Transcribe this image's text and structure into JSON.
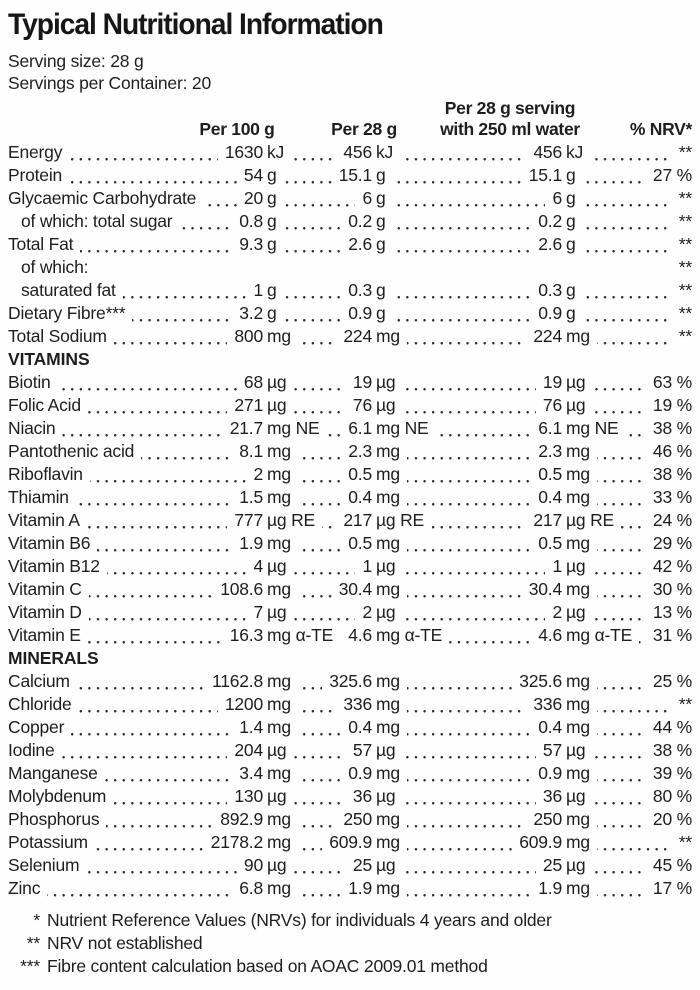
{
  "title": "Typical Nutritional Information",
  "serving": {
    "size": "Serving size: 28 g",
    "per_container": "Servings per Container: 20"
  },
  "columns": {
    "per100": "Per 100 g",
    "per28": "Per 28 g",
    "water_line1": "Per 28 g serving",
    "water_line2": "with 250 ml water",
    "nrv": "% NRV*"
  },
  "rows": [
    {
      "label": "Energy",
      "n1": "1630",
      "u1": "kJ",
      "n2": "456",
      "u2": "kJ",
      "n3": "456",
      "u3": "kJ",
      "nrv": "**"
    },
    {
      "label": "Protein",
      "n1": "54",
      "u1": "g",
      "n2": "15.1",
      "u2": "g",
      "n3": "15.1",
      "u3": "g",
      "nrv": "27 %"
    },
    {
      "label": "Glycaemic Carbohydrate",
      "n1": "20",
      "u1": "g",
      "n2": "6",
      "u2": "g",
      "n3": "6",
      "u3": "g",
      "nrv": "**"
    },
    {
      "label": "of which: total sugar",
      "ind": 1,
      "n1": "0.8",
      "u1": "g",
      "n2": "0.2",
      "u2": "g",
      "n3": "0.2",
      "u3": "g",
      "nrv": "**"
    },
    {
      "label": "Total Fat",
      "n1": "9.3",
      "u1": "g",
      "n2": "2.6",
      "u2": "g",
      "n3": "2.6",
      "u3": "g",
      "nrv": "**"
    },
    {
      "label": "of which:",
      "ind": 1,
      "nd": 1,
      "nrv": "**"
    },
    {
      "label": "saturated fat",
      "ind": 1,
      "n1": "1",
      "u1": "g",
      "n2": "0.3",
      "u2": "g",
      "n3": "0.3",
      "u3": "g",
      "nrv": "**"
    },
    {
      "label": "Dietary Fibre***",
      "n1": "3.2",
      "u1": "g",
      "n2": "0.9",
      "u2": "g",
      "n3": "0.9",
      "u3": "g",
      "nrv": "**"
    },
    {
      "label": "Total Sodium",
      "n1": "800",
      "u1": "mg",
      "n2": "224",
      "u2": "mg",
      "n3": "224",
      "u3": "mg",
      "nrv": "**"
    },
    {
      "label": "VITAMINS",
      "sec": 1
    },
    {
      "label": "Biotin",
      "n1": "68",
      "u1": "µg",
      "n2": "19",
      "u2": "µg",
      "n3": "19",
      "u3": "µg",
      "nrv": "63 %"
    },
    {
      "label": "Folic Acid",
      "n1": "271",
      "u1": "µg",
      "n2": "76",
      "u2": "µg",
      "n3": "76",
      "u3": "µg",
      "nrv": "19 %"
    },
    {
      "label": "Niacin",
      "n1": "21.7",
      "u1": "mg NE",
      "n2": "6.1",
      "u2": "mg NE",
      "n3": "6.1",
      "u3": "mg NE",
      "nrv": "38 %"
    },
    {
      "label": "Pantothenic acid",
      "n1": "8.1",
      "u1": "mg",
      "n2": "2.3",
      "u2": "mg",
      "n3": "2.3",
      "u3": "mg",
      "nrv": "46 %"
    },
    {
      "label": "Riboflavin",
      "n1": "2",
      "u1": "mg",
      "n2": "0.5",
      "u2": "mg",
      "n3": "0.5",
      "u3": "mg",
      "nrv": "38 %"
    },
    {
      "label": "Thiamin",
      "n1": "1.5",
      "u1": "mg",
      "n2": "0.4",
      "u2": "mg",
      "n3": "0.4",
      "u3": "mg",
      "nrv": "33 %"
    },
    {
      "label": "Vitamin A",
      "n1": "777",
      "u1": "µg RE",
      "n2": "217",
      "u2": "µg RE",
      "n3": "217",
      "u3": "µg RE",
      "nrv": "24 %"
    },
    {
      "label": "Vitamin B6",
      "n1": "1.9",
      "u1": "mg",
      "n2": "0.5",
      "u2": "mg",
      "n3": "0.5",
      "u3": "mg",
      "nrv": "29 %"
    },
    {
      "label": "Vitamin B12",
      "n1": "4",
      "u1": "µg",
      "n2": "1",
      "u2": "µg",
      "n3": "1",
      "u3": "µg",
      "nrv": "42 %"
    },
    {
      "label": "Vitamin C",
      "n1": "108.6",
      "u1": "mg",
      "n2": "30.4",
      "u2": "mg",
      "n3": "30.4",
      "u3": "mg",
      "nrv": "30 %"
    },
    {
      "label": "Vitamin D",
      "n1": "7",
      "u1": "µg",
      "n2": "2",
      "u2": "µg",
      "n3": "2",
      "u3": "µg",
      "nrv": "13 %"
    },
    {
      "label": "Vitamin E",
      "n1": "16.3",
      "u1": "mg α-TE",
      "n2": "4.6",
      "u2": "mg α-TE",
      "n3": "4.6",
      "u3": "mg α-TE",
      "nrv": "31 %"
    },
    {
      "label": "MINERALS",
      "sec": 1
    },
    {
      "label": "Calcium",
      "n1": "1162.8",
      "u1": "mg",
      "n2": "325.6",
      "u2": "mg",
      "n3": "325.6",
      "u3": "mg",
      "nrv": "25 %"
    },
    {
      "label": "Chloride",
      "n1": "1200",
      "u1": "mg",
      "n2": "336",
      "u2": "mg",
      "n3": "336",
      "u3": "mg",
      "nrv": "**"
    },
    {
      "label": "Copper",
      "n1": "1.4",
      "u1": "mg",
      "n2": "0.4",
      "u2": "mg",
      "n3": "0.4",
      "u3": "mg",
      "nrv": "44 %"
    },
    {
      "label": "Iodine",
      "n1": "204",
      "u1": "µg",
      "n2": "57",
      "u2": "µg",
      "n3": "57",
      "u3": "µg",
      "nrv": "38 %"
    },
    {
      "label": "Manganese",
      "n1": "3.4",
      "u1": "mg",
      "n2": "0.9",
      "u2": "mg",
      "n3": "0.9",
      "u3": "mg",
      "nrv": "39 %"
    },
    {
      "label": "Molybdenum",
      "n1": "130",
      "u1": "µg",
      "n2": "36",
      "u2": "µg",
      "n3": "36",
      "u3": "µg",
      "nrv": "80 %"
    },
    {
      "label": "Phosphorus",
      "n1": "892.9",
      "u1": "mg",
      "n2": "250",
      "u2": "mg",
      "n3": "250",
      "u3": "mg",
      "nrv": "20 %"
    },
    {
      "label": "Potassium",
      "n1": "2178.2",
      "u1": "mg",
      "n2": "609.9",
      "u2": "mg",
      "n3": "609.9",
      "u3": "mg",
      "nrv": "**"
    },
    {
      "label": "Selenium",
      "n1": "90",
      "u1": "µg",
      "n2": "25",
      "u2": "µg",
      "n3": "25",
      "u3": "µg",
      "nrv": "45 %"
    },
    {
      "label": "Zinc",
      "n1": "6.8",
      "u1": "mg",
      "n2": "1.9",
      "u2": "mg",
      "n3": "1.9",
      "u3": "mg",
      "nrv": "17 %"
    }
  ],
  "footnotes": [
    {
      "marker": "*",
      "text": "Nutrient Reference Values (NRVs) for individuals 4 years and older"
    },
    {
      "marker": "**",
      "text": "NRV not established"
    },
    {
      "marker": "***",
      "text": "Fibre content calculation based on AOAC 2009.01 method"
    }
  ],
  "colors": {
    "text": "#1e1e1e",
    "background": "#fefefe"
  }
}
